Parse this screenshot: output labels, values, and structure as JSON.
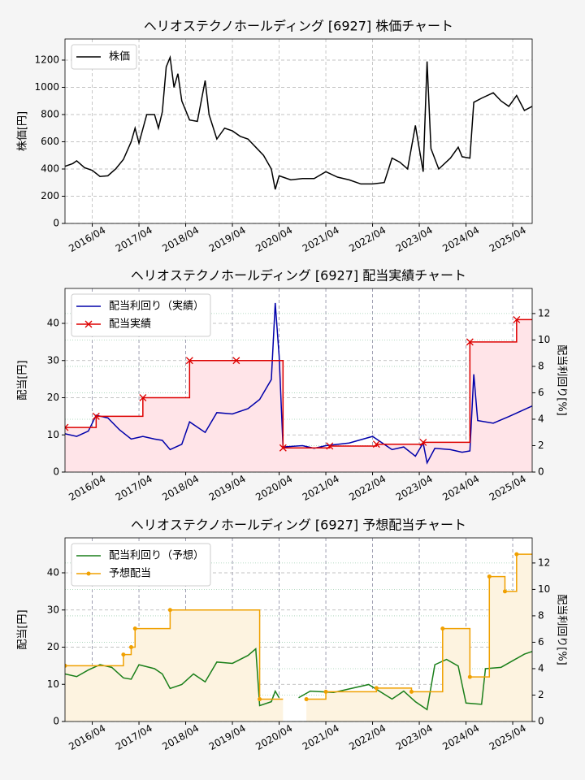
{
  "chart_data": [
    {
      "type": "line",
      "title": "ヘリオステクノホールディング [6927]  株価チャート",
      "ylabel": "株価[円]",
      "xlim": [
        "2015/09",
        "2025/09"
      ],
      "xticks": [
        "2016/04",
        "2017/04",
        "2018/04",
        "2019/04",
        "2020/04",
        "2021/04",
        "2022/04",
        "2023/04",
        "2024/04",
        "2025/04"
      ],
      "ylim": [
        0,
        1355
      ],
      "yticks": [
        0,
        200,
        400,
        600,
        800,
        1000,
        1200
      ],
      "grid": true,
      "legend": "upper left",
      "series": [
        {
          "name": "株価",
          "color": "#000000",
          "x": [
            "2015/09",
            "2015/11",
            "2015/12",
            "2016/02",
            "2016/04",
            "2016/06",
            "2016/08",
            "2016/10",
            "2016/12",
            "2017/02",
            "2017/03",
            "2017/04",
            "2017/06",
            "2017/08",
            "2017/09",
            "2017/10",
            "2017/11",
            "2017/12",
            "2018/01",
            "2018/02",
            "2018/03",
            "2018/05",
            "2018/07",
            "2018/09",
            "2018/10",
            "2018/12",
            "2019/02",
            "2019/04",
            "2019/06",
            "2019/08",
            "2019/10",
            "2019/12",
            "2020/02",
            "2020/03",
            "2020/04",
            "2020/07",
            "2020/10",
            "2021/01",
            "2021/04",
            "2021/07",
            "2021/10",
            "2022/01",
            "2022/04",
            "2022/07",
            "2022/09",
            "2022/11",
            "2023/01",
            "2023/03",
            "2023/05",
            "2023/06",
            "2023/07",
            "2023/09",
            "2023/12",
            "2024/02",
            "2024/03",
            "2024/05",
            "2024/06",
            "2024/08",
            "2024/11",
            "2025/01",
            "2025/03",
            "2025/05",
            "2025/07",
            "2025/09"
          ],
          "values": [
            420,
            440,
            460,
            410,
            390,
            345,
            350,
            400,
            470,
            600,
            700,
            590,
            800,
            800,
            700,
            820,
            1150,
            1220,
            1000,
            1100,
            900,
            760,
            750,
            1050,
            800,
            620,
            700,
            680,
            640,
            620,
            560,
            500,
            400,
            250,
            350,
            320,
            330,
            330,
            380,
            340,
            320,
            290,
            290,
            300,
            480,
            450,
            400,
            720,
            380,
            1190,
            550,
            400,
            480,
            560,
            490,
            480,
            890,
            920,
            960,
            900,
            860,
            940,
            830,
            860
          ]
        }
      ]
    },
    {
      "type": "line",
      "title": "ヘリオステクノホールディング [6927]  配当実績チャート",
      "ylabel": "配当[円]",
      "y2label": "配当利回り[%]",
      "xlim": [
        "2015/09",
        "2025/09"
      ],
      "xticks": [
        "2016/04",
        "2017/04",
        "2018/04",
        "2019/04",
        "2020/04",
        "2021/04",
        "2022/04",
        "2023/04",
        "2024/04",
        "2025/04"
      ],
      "ylim": [
        0,
        49.4
      ],
      "yticks": [
        0,
        10,
        20,
        30,
        40
      ],
      "y2lim": [
        0,
        13.9
      ],
      "y2ticks": [
        0,
        2,
        4,
        6,
        8,
        10,
        12
      ],
      "grid": true,
      "legend": "upper left",
      "series": [
        {
          "name": "配当利回り（実績）",
          "color": "#0000aa",
          "axis": "y2",
          "x": [
            "2015/09",
            "2015/12",
            "2016/03",
            "2016/05",
            "2016/08",
            "2016/11",
            "2017/02",
            "2017/05",
            "2017/08",
            "2017/10",
            "2017/12",
            "2018/03",
            "2018/05",
            "2018/09",
            "2018/12",
            "2019/04",
            "2019/08",
            "2019/11",
            "2020/02",
            "2020/03",
            "2020/04",
            "2020/05",
            "2020/10",
            "2021/01",
            "2021/04",
            "2021/10",
            "2022/04",
            "2022/09",
            "2022/12",
            "2023/03",
            "2023/05",
            "2023/06",
            "2023/08",
            "2023/12",
            "2024/03",
            "2024/05",
            "2024/06",
            "2024/07",
            "2024/11",
            "2025/03",
            "2025/06",
            "2025/09"
          ],
          "values": [
            2.9,
            2.7,
            3.1,
            4.3,
            4.1,
            3.2,
            2.5,
            2.7,
            2.5,
            2.4,
            1.7,
            2.1,
            3.8,
            3.0,
            4.5,
            4.4,
            4.8,
            5.5,
            7.0,
            12.8,
            8.8,
            1.9,
            2.0,
            1.8,
            2.0,
            2.2,
            2.7,
            1.7,
            1.9,
            1.2,
            2.2,
            0.7,
            1.8,
            1.7,
            1.5,
            1.6,
            7.4,
            3.9,
            3.7,
            4.2,
            4.6,
            5.0
          ]
        },
        {
          "name": "配当実績",
          "color": "#dd0000",
          "steps": true,
          "marker": "x",
          "fill": "#ffe4e8",
          "x": [
            "2015/09",
            "2016/05",
            "2017/05",
            "2018/05",
            "2019/05",
            "2020/05",
            "2021/05",
            "2022/05",
            "2023/05",
            "2024/05",
            "2025/05"
          ],
          "values": [
            12,
            15,
            20,
            30,
            30,
            6.5,
            7,
            7.5,
            8,
            35,
            41
          ]
        }
      ]
    },
    {
      "type": "line",
      "title": "ヘリオステクノホールディング [6927]  予想配当チャート",
      "ylabel": "配当[円]",
      "y2label": "配当利回り[%]",
      "xlim": [
        "2015/09",
        "2025/09"
      ],
      "xticks": [
        "2016/04",
        "2017/04",
        "2018/04",
        "2019/04",
        "2020/04",
        "2021/04",
        "2022/04",
        "2023/04",
        "2024/04",
        "2025/04"
      ],
      "ylim": [
        0,
        49.4
      ],
      "yticks": [
        0,
        10,
        20,
        30,
        40
      ],
      "y2lim": [
        0,
        13.9
      ],
      "y2ticks": [
        0,
        2,
        4,
        6,
        8,
        10,
        12
      ],
      "grid": true,
      "legend": "upper left",
      "series": [
        {
          "name": "配当利回り（予想）",
          "color": "#1a7f1a",
          "axis": "y2",
          "x": [
            "2015/09",
            "2015/12",
            "2016/03",
            "2016/06",
            "2016/09",
            "2016/12",
            "2017/02",
            "2017/04",
            "2017/08",
            "2017/10",
            "2017/12",
            "2018/03",
            "2018/06",
            "2018/09",
            "2018/12",
            "2019/04",
            "2019/08",
            "2019/10",
            "2019/11",
            "2020/02",
            "2020/03",
            "2020/04",
            "2020/06",
            "2020/09",
            "2020/12",
            "2021/06",
            "2022/03",
            "2022/09",
            "2022/12",
            "2023/03",
            "2023/06",
            "2023/08",
            "2023/11",
            "2024/02",
            "2024/04",
            "2024/08",
            "2024/09",
            "2025/01",
            "2025/04",
            "2025/07",
            "2025/09"
          ],
          "values": [
            3.6,
            3.4,
            3.9,
            4.3,
            4.1,
            3.3,
            3.2,
            4.3,
            4.0,
            3.6,
            2.5,
            2.8,
            3.6,
            3.0,
            4.5,
            4.4,
            5.0,
            5.5,
            1.2,
            1.5,
            2.3,
            1.8,
            null,
            1.8,
            2.3,
            2.2,
            2.8,
            1.7,
            2.3,
            1.5,
            0.9,
            4.3,
            4.7,
            4.2,
            1.4,
            1.3,
            4.0,
            4.1,
            4.6,
            5.1,
            5.3
          ]
        },
        {
          "name": "予想配当",
          "color": "#f0a000",
          "steps": true,
          "marker": "o",
          "fill": "#fdf3e0",
          "x": [
            "2015/09",
            "2016/12",
            "2017/02",
            "2017/03",
            "2017/12",
            "2019/11",
            "2020/05",
            "2020/11",
            "2021/04",
            "2022/05",
            "2023/02",
            "2023/10",
            "2024/05",
            "2024/10",
            "2025/02",
            "2025/05"
          ],
          "values": [
            15,
            18,
            20,
            25,
            30,
            6,
            null,
            6,
            8,
            9,
            8,
            25,
            12,
            39,
            35,
            45
          ]
        }
      ]
    }
  ]
}
